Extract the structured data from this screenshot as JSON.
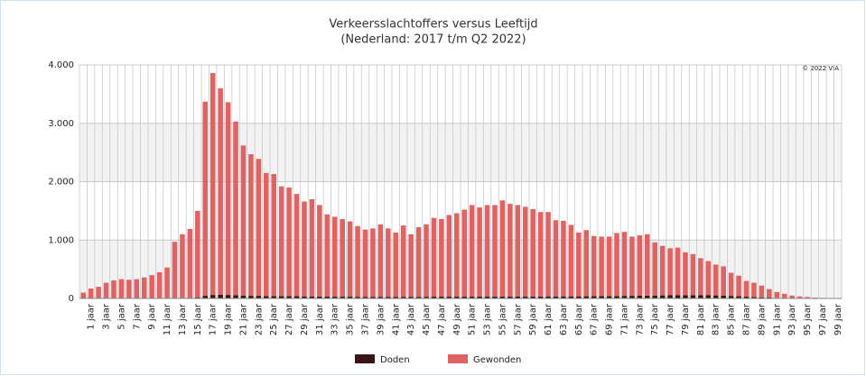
{
  "chart_data": {
    "type": "stacked_bar",
    "title": "Verkeersslachtoffers versus Leeftijd",
    "subtitle": "(Nederland: 2017 t/m Q2 2022)",
    "annotation": "© 2022 VIA",
    "categories": [
      null,
      "1 jaar",
      null,
      "3 jaar",
      null,
      "5 jaar",
      null,
      "7 jaar",
      null,
      "9 jaar",
      null,
      "11 jaar",
      null,
      "13 jaar",
      null,
      "15 jaar",
      null,
      "17 jaar",
      null,
      "19 jaar",
      null,
      "21 jaar",
      null,
      "23 jaar",
      null,
      "25 jaar",
      null,
      "27 jaar",
      null,
      "29 jaar",
      null,
      "31 jaar",
      null,
      "33 jaar",
      null,
      "35 jaar",
      null,
      "37 jaar",
      null,
      "39 jaar",
      null,
      "41 jaar",
      null,
      "43 jaar",
      null,
      "45 jaar",
      null,
      "47 jaar",
      null,
      "49 jaar",
      null,
      "51 jaar",
      null,
      "53 jaar",
      null,
      "55 jaar",
      null,
      "57 jaar",
      null,
      "59 jaar",
      null,
      "61 jaar",
      null,
      "63 jaar",
      null,
      "65 jaar",
      null,
      "67 jaar",
      null,
      "69 jaar",
      null,
      "71 jaar",
      null,
      "73 jaar",
      null,
      "75 jaar",
      null,
      "77 jaar",
      null,
      "79 jaar",
      null,
      "81 jaar",
      null,
      "83 jaar",
      null,
      "85 jaar",
      null,
      "87 jaar",
      null,
      "89 jaar",
      null,
      "91 jaar",
      null,
      "93 jaar",
      null,
      "95 jaar",
      null,
      "97 jaar",
      null,
      "99 jaar"
    ],
    "series": [
      {
        "name": "Doden",
        "color": "#3b1215",
        "values": [
          2,
          1,
          1,
          2,
          2,
          2,
          2,
          2,
          2,
          3,
          3,
          4,
          8,
          10,
          12,
          15,
          45,
          60,
          65,
          60,
          55,
          50,
          45,
          45,
          40,
          40,
          40,
          38,
          38,
          35,
          35,
          33,
          32,
          30,
          30,
          30,
          28,
          28,
          28,
          28,
          28,
          28,
          28,
          28,
          28,
          28,
          30,
          30,
          30,
          30,
          30,
          30,
          32,
          32,
          32,
          32,
          32,
          33,
          33,
          34,
          34,
          35,
          35,
          35,
          36,
          36,
          37,
          38,
          40,
          40,
          42,
          44,
          45,
          46,
          48,
          50,
          52,
          54,
          55,
          56,
          56,
          55,
          54,
          52,
          48,
          44,
          38,
          30,
          25,
          20,
          15,
          10,
          8,
          5,
          4,
          3,
          2,
          1,
          1,
          1
        ]
      },
      {
        "name": "Gewonden",
        "color": "#e06363",
        "values": [
          98,
          169,
          199,
          268,
          308,
          328,
          318,
          328,
          358,
          397,
          447,
          526,
          962,
          1090,
          1178,
          1485,
          3325,
          3800,
          3535,
          3300,
          2975,
          2570,
          2425,
          2345,
          2110,
          2090,
          1880,
          1862,
          1752,
          1625,
          1665,
          1567,
          1408,
          1370,
          1330,
          1290,
          1212,
          1152,
          1172,
          1242,
          1172,
          1102,
          1222,
          1072,
          1192,
          1242,
          1350,
          1330,
          1400,
          1430,
          1490,
          1570,
          1528,
          1568,
          1568,
          1648,
          1588,
          1567,
          1537,
          1496,
          1446,
          1445,
          1305,
          1295,
          1224,
          1094,
          1133,
          1032,
          1020,
          1020,
          1078,
          1096,
          1015,
          1034,
          1052,
          910,
          848,
          806,
          815,
          734,
          704,
          635,
          586,
          528,
          502,
          396,
          352,
          270,
          245,
          200,
          145,
          100,
          72,
          45,
          31,
          22,
          13,
          9,
          4,
          2
        ]
      }
    ],
    "ylim": [
      0,
      4000
    ],
    "yticks": [
      0,
      {
        "value": 1000,
        "label": "1.000"
      },
      {
        "value": 2000,
        "label": "2.000"
      },
      {
        "value": 3000,
        "label": "3.000"
      },
      {
        "value": 4000,
        "label": "4.000"
      }
    ],
    "grid": true,
    "legend": "bottom"
  }
}
